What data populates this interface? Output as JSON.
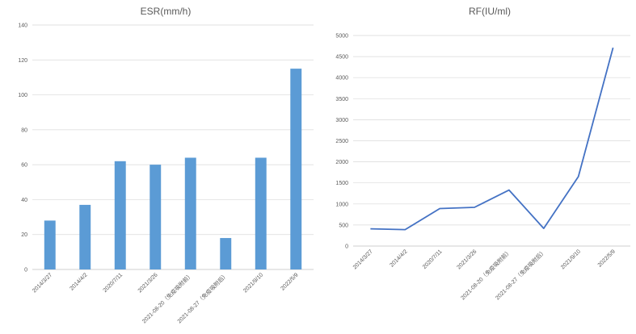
{
  "chart_data": [
    {
      "type": "bar",
      "title": "ESR(mm/h)",
      "xlabel": "",
      "ylabel": "",
      "ylim": [
        0,
        140
      ],
      "yticks": [
        0,
        20,
        40,
        60,
        80,
        100,
        120,
        140
      ],
      "grid": true,
      "color": "#5b9bd5",
      "categories": [
        "2014/3/27",
        "2014/4/2",
        "2020/7/11",
        "2021/3/26",
        "2021-08-20（免疫吸附前）",
        "2021-08-27（免疫吸附后）",
        "2021/9/10",
        "2022/5/9"
      ],
      "values": [
        28,
        37,
        62,
        60,
        64,
        18,
        64,
        115
      ]
    },
    {
      "type": "line",
      "title": "RF(IU/ml)",
      "xlabel": "",
      "ylabel": "",
      "ylim": [
        0,
        5000
      ],
      "yticks": [
        0,
        500,
        1000,
        1500,
        2000,
        2500,
        3000,
        3500,
        4000,
        4500,
        5000
      ],
      "grid": true,
      "color": "#4472c4",
      "categories": [
        "2014/3/27",
        "2014/4/2",
        "2020/7/11",
        "2021/3/26",
        "2021-08-20（免疫吸附前）",
        "2021-08-27（免疫吸附后）",
        "2021/9/10",
        "2022/5/9"
      ],
      "values": [
        410,
        390,
        890,
        920,
        1330,
        420,
        1650,
        4710
      ]
    }
  ]
}
